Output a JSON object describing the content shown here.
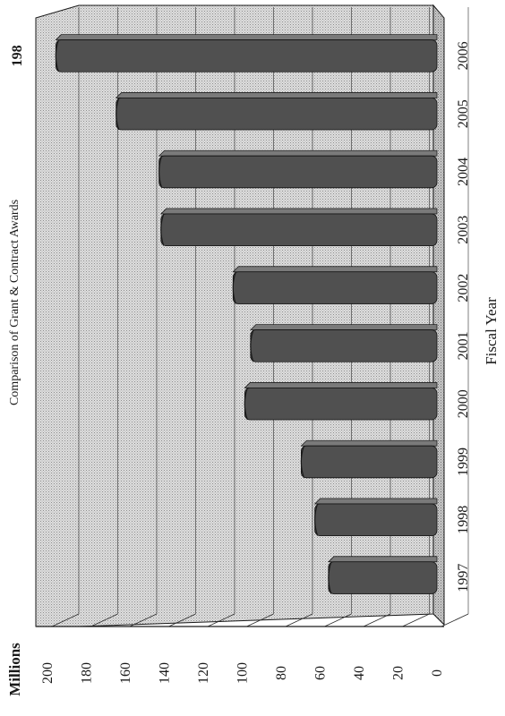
{
  "chart_data": {
    "type": "bar",
    "title": "Comparison of Grant & Contract Awards",
    "xlabel": "Fiscal Year",
    "ylabel": "Millions",
    "categories": [
      "1997",
      "1998",
      "1999",
      "2000",
      "2001",
      "2002",
      "2003",
      "2004",
      "2005",
      "2006"
    ],
    "values": [
      58,
      65,
      72,
      101,
      98,
      107,
      144,
      145,
      167,
      198
    ],
    "data_labels": [
      {
        "category": "2006",
        "text": "198"
      }
    ],
    "ylim": [
      0,
      200
    ],
    "yticks": [
      0,
      20,
      40,
      60,
      80,
      100,
      120,
      140,
      160,
      180,
      200
    ],
    "grid": true,
    "style": "3d-bar, page rotated 90° clockwise (value axis along bottom, categories along right edge)",
    "colors": {
      "bar_face": "#505050",
      "bar_top": "#7a7a7a",
      "bar_side": "#2c2c2c",
      "plot_background": "#d9d9d9",
      "floor": "#c4c4c4",
      "grid_line": "#2a2a2a"
    }
  }
}
